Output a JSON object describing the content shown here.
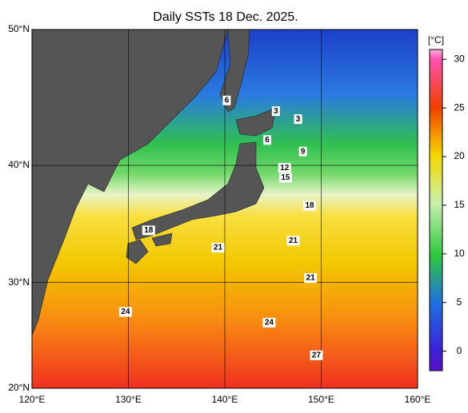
{
  "map": {
    "title": "Daily SSTs 18 Dec. 2025.",
    "lonlim": [
      120,
      160
    ],
    "latlim": [
      20,
      50
    ],
    "lonticks": [
      {
        "value": 120,
        "label": "120°E"
      },
      {
        "value": 130,
        "label": "130°E"
      },
      {
        "value": 140,
        "label": "140°E"
      },
      {
        "value": 150,
        "label": "150°E"
      },
      {
        "value": 160,
        "label": "160°E"
      }
    ],
    "latticks": [
      {
        "value": 20,
        "label": "20°N"
      },
      {
        "value": 30,
        "label": "30°N"
      },
      {
        "value": 40,
        "label": "40°N"
      },
      {
        "value": 50,
        "label": "50°N"
      }
    ],
    "colorbar": {
      "label": "[°C]",
      "lim": [
        -2,
        31
      ],
      "ticks": [
        0,
        5,
        10,
        15,
        20,
        25,
        30
      ]
    },
    "contour_labels": [
      {
        "text": "6",
        "lon": 140.2,
        "lat": 45.0
      },
      {
        "text": "3",
        "lon": 145.3,
        "lat": 44.2
      },
      {
        "text": "3",
        "lon": 147.6,
        "lat": 43.6
      },
      {
        "text": "6",
        "lon": 144.4,
        "lat": 42.0
      },
      {
        "text": "9",
        "lon": 148.1,
        "lat": 41.1
      },
      {
        "text": "12",
        "lon": 146.2,
        "lat": 39.8
      },
      {
        "text": "15",
        "lon": 146.3,
        "lat": 39.0
      },
      {
        "text": "18",
        "lon": 148.8,
        "lat": 36.7
      },
      {
        "text": "18",
        "lon": 132.1,
        "lat": 34.6
      },
      {
        "text": "21",
        "lon": 139.3,
        "lat": 33.1
      },
      {
        "text": "21",
        "lon": 147.1,
        "lat": 33.7
      },
      {
        "text": "21",
        "lon": 148.9,
        "lat": 30.4
      },
      {
        "text": "24",
        "lon": 129.7,
        "lat": 27.3
      },
      {
        "text": "24",
        "lon": 144.6,
        "lat": 26.3
      },
      {
        "text": "27",
        "lon": 149.5,
        "lat": 23.2
      }
    ]
  }
}
